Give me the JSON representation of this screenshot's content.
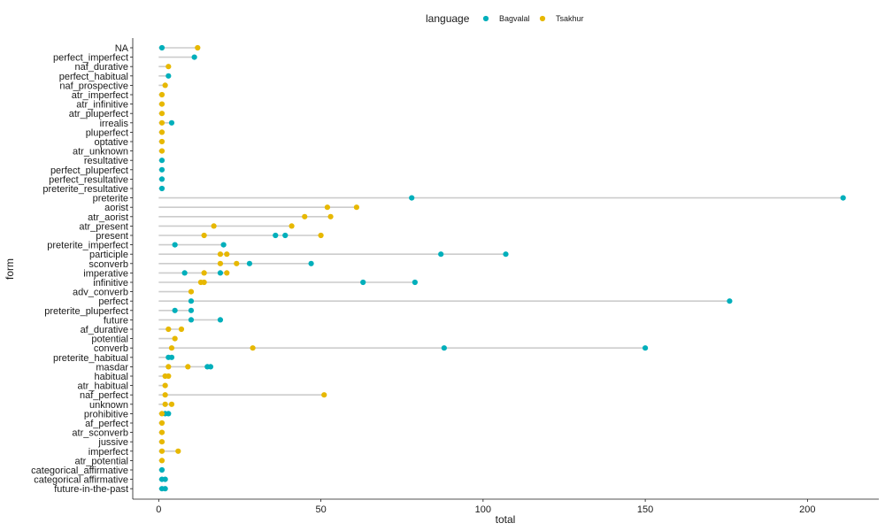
{
  "chart_data": {
    "type": "scatter",
    "subtype": "dot-range",
    "xlabel": "total",
    "ylabel": "form",
    "xlim": [
      -8,
      222
    ],
    "xticks": [
      0,
      50,
      100,
      150,
      200
    ],
    "grid": false,
    "legend": {
      "title": "language",
      "placement": "top",
      "entries": [
        {
          "name": "Bagvalal",
          "color": "#00AFBB"
        },
        {
          "name": "Tsakhur",
          "color": "#E7B800"
        }
      ]
    },
    "segment_color": "#cccccc",
    "categories": [
      "NA",
      "perfect_imperfect",
      "naf_durative",
      "perfect_habitual",
      "naf_prospective",
      "atr_imperfect",
      "atr_infinitive",
      "atr_pluperfect",
      "irrealis",
      "pluperfect",
      "optative",
      "atr_unknown",
      "resultative",
      "perfect_pluperfect",
      "perfect_resultative",
      "preterite_resultative",
      "preterite",
      "aorist",
      "atr_aorist",
      "atr_present",
      "present",
      "preterite_imperfect",
      "participle",
      "sconverb",
      "imperative",
      "infinitive",
      "adv_converb",
      "perfect",
      "preterite_pluperfect",
      "future",
      "af_durative",
      "potential",
      "converb",
      "preterite_habitual",
      "masdar",
      "habitual",
      "atr_habitual",
      "naf_perfect",
      "unknown",
      "prohibitive",
      "af_perfect",
      "atr_sconverb",
      "jussive",
      "imperfect",
      "atr_potential",
      "categorical_affirmative",
      "categorical affirmative",
      "future-in-the-past"
    ],
    "series": [
      {
        "name": "Bagvalal",
        "points": [
          [
            "NA",
            1
          ],
          [
            "perfect_imperfect",
            11
          ],
          [
            "perfect_habitual",
            3
          ],
          [
            "irrealis",
            4
          ],
          [
            "resultative",
            1
          ],
          [
            "perfect_pluperfect",
            1
          ],
          [
            "perfect_resultative",
            1
          ],
          [
            "preterite_resultative",
            1
          ],
          [
            "preterite",
            78
          ],
          [
            "preterite",
            211
          ],
          [
            "present",
            36
          ],
          [
            "present",
            39
          ],
          [
            "preterite_imperfect",
            5
          ],
          [
            "preterite_imperfect",
            20
          ],
          [
            "participle",
            87
          ],
          [
            "participle",
            107
          ],
          [
            "sconverb",
            28
          ],
          [
            "sconverb",
            47
          ],
          [
            "imperative",
            8
          ],
          [
            "imperative",
            19
          ],
          [
            "infinitive",
            63
          ],
          [
            "infinitive",
            79
          ],
          [
            "perfect",
            10
          ],
          [
            "perfect",
            176
          ],
          [
            "preterite_pluperfect",
            5
          ],
          [
            "preterite_pluperfect",
            10
          ],
          [
            "future",
            10
          ],
          [
            "future",
            19
          ],
          [
            "converb",
            88
          ],
          [
            "converb",
            150
          ],
          [
            "preterite_habitual",
            3
          ],
          [
            "preterite_habitual",
            4
          ],
          [
            "masdar",
            15
          ],
          [
            "masdar",
            16
          ],
          [
            "prohibitive",
            2
          ],
          [
            "prohibitive",
            3
          ],
          [
            "categorical_affirmative",
            1
          ],
          [
            "categorical affirmative",
            1
          ],
          [
            "categorical affirmative",
            2
          ],
          [
            "future-in-the-past",
            1
          ],
          [
            "future-in-the-past",
            2
          ]
        ]
      },
      {
        "name": "Tsakhur",
        "points": [
          [
            "NA",
            12
          ],
          [
            "naf_durative",
            3
          ],
          [
            "naf_prospective",
            2
          ],
          [
            "atr_imperfect",
            1
          ],
          [
            "atr_infinitive",
            1
          ],
          [
            "atr_pluperfect",
            1
          ],
          [
            "irrealis",
            1
          ],
          [
            "pluperfect",
            1
          ],
          [
            "optative",
            1
          ],
          [
            "atr_unknown",
            1
          ],
          [
            "aorist",
            52
          ],
          [
            "aorist",
            61
          ],
          [
            "atr_aorist",
            45
          ],
          [
            "atr_aorist",
            53
          ],
          [
            "atr_present",
            17
          ],
          [
            "atr_present",
            41
          ],
          [
            "present",
            14
          ],
          [
            "present",
            50
          ],
          [
            "participle",
            19
          ],
          [
            "participle",
            21
          ],
          [
            "sconverb",
            19
          ],
          [
            "sconverb",
            24
          ],
          [
            "imperative",
            14
          ],
          [
            "imperative",
            21
          ],
          [
            "infinitive",
            13
          ],
          [
            "infinitive",
            14
          ],
          [
            "adv_converb",
            10
          ],
          [
            "af_durative",
            3
          ],
          [
            "af_durative",
            7
          ],
          [
            "potential",
            5
          ],
          [
            "converb",
            4
          ],
          [
            "converb",
            29
          ],
          [
            "masdar",
            3
          ],
          [
            "masdar",
            9
          ],
          [
            "habitual",
            2
          ],
          [
            "habitual",
            3
          ],
          [
            "atr_habitual",
            2
          ],
          [
            "naf_perfect",
            2
          ],
          [
            "naf_perfect",
            51
          ],
          [
            "unknown",
            2
          ],
          [
            "unknown",
            4
          ],
          [
            "prohibitive",
            1
          ],
          [
            "af_perfect",
            1
          ],
          [
            "atr_sconverb",
            1
          ],
          [
            "jussive",
            1
          ],
          [
            "imperfect",
            1
          ],
          [
            "imperfect",
            6
          ],
          [
            "atr_potential",
            1
          ]
        ]
      }
    ]
  }
}
